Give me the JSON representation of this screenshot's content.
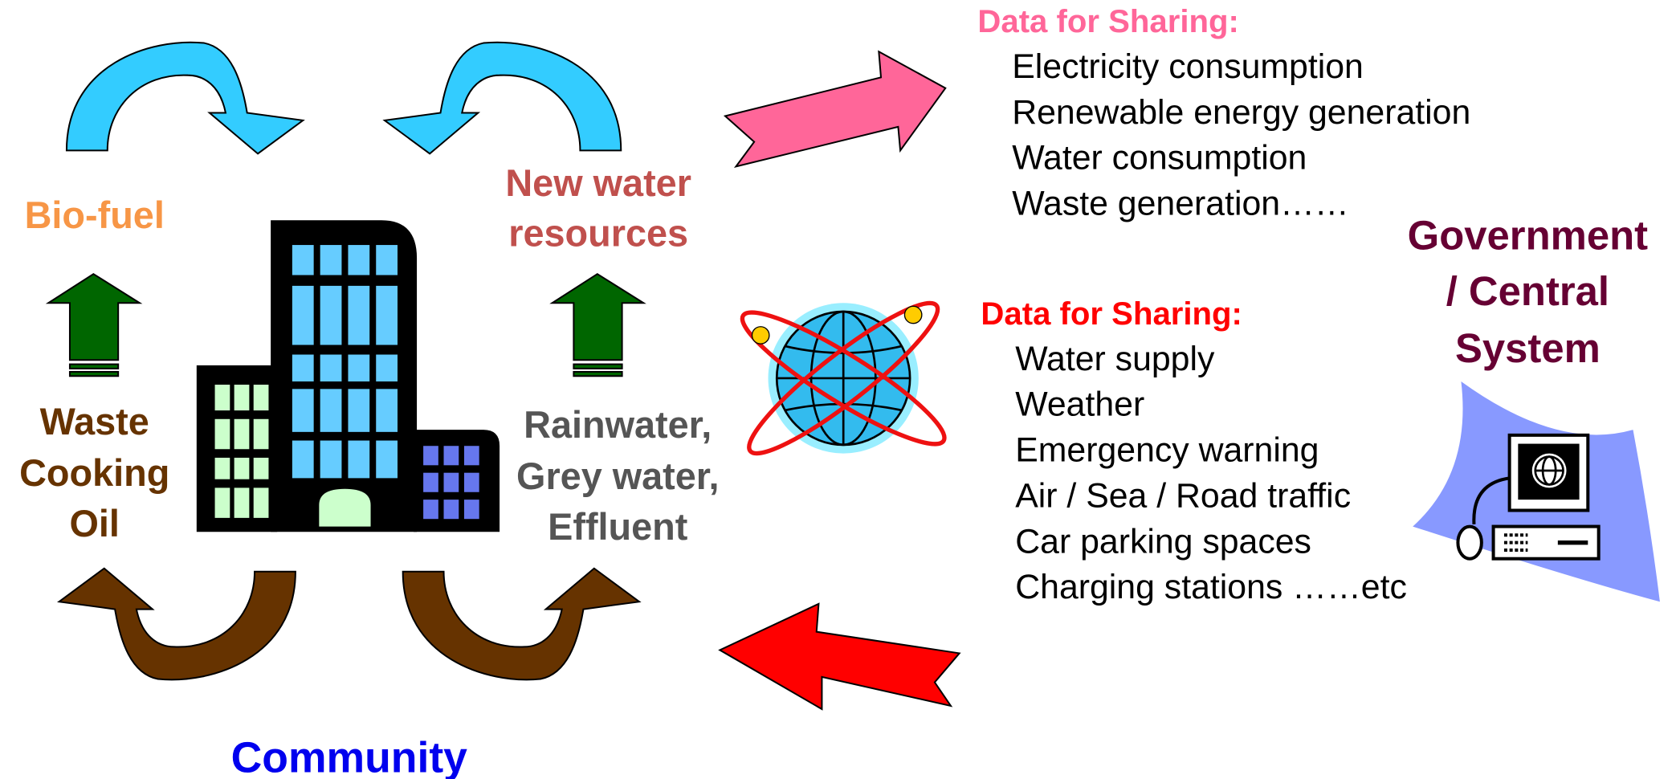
{
  "bio_fuel": "Bio-fuel",
  "new_water": [
    "New water",
    "resources"
  ],
  "waste_oil": [
    "Waste",
    "Cooking",
    "Oil"
  ],
  "rainwater": [
    "Rainwater,",
    "Grey water,",
    "Effluent"
  ],
  "community": "Community",
  "outgoing": {
    "heading": "Data for Sharing:",
    "items": [
      "Electricity consumption",
      "Renewable energy generation",
      "Water consumption",
      "Waste generation……"
    ]
  },
  "government": [
    "Government",
    "/ Central",
    "System"
  ],
  "incoming": {
    "heading": "Data for Sharing:",
    "items": [
      "Water supply",
      "Weather",
      "Emergency warning",
      "Air / Sea / Road traffic",
      "Car parking spaces",
      "Charging stations ……etc"
    ]
  }
}
